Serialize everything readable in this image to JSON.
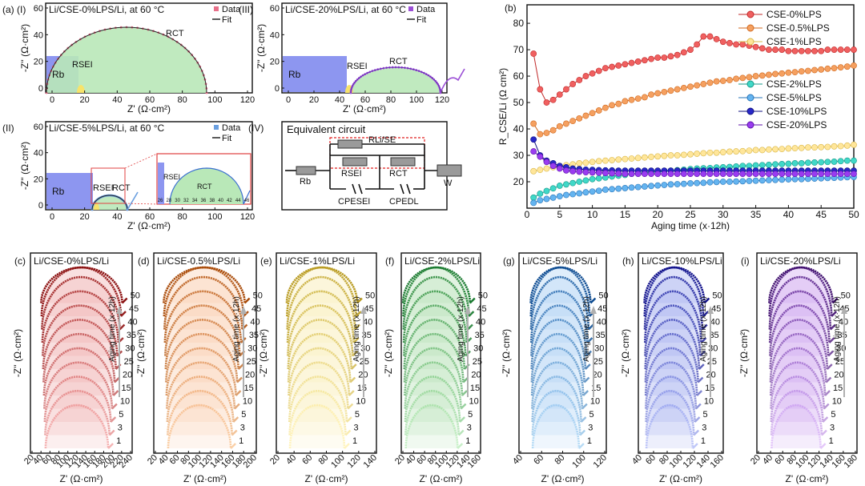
{
  "panels": {
    "a1": {
      "label": "(a) (I)",
      "title": "Li/CSE-0%LPS/Li, at 60 °C",
      "legend": [
        "Data",
        "Fit"
      ],
      "data_color": "#e8708a",
      "xlabel": "Z' (Ω·cm²)",
      "ylabel": "-Z'' (Ω·cm²)",
      "xticks": [
        "0",
        "20",
        "40",
        "60",
        "80",
        "100",
        "120"
      ],
      "yticks": [
        "0",
        "20",
        "40",
        "60"
      ],
      "annotations": [
        "Rb",
        "RSEI",
        "RCT"
      ]
    },
    "a2": {
      "label": "(II)",
      "title": "Li/CSE-5%LPS/Li, at 60 °C",
      "legend": [
        "Data",
        "Fit"
      ],
      "data_color": "#6a9fe0",
      "xlabel": "Z' (Ω·cm²)",
      "ylabel": "-Z'' (Ω·cm²)",
      "xticks": [
        "0",
        "20",
        "40",
        "60",
        "80",
        "100",
        "120"
      ],
      "yticks": [
        "0",
        "20",
        "40",
        "60"
      ],
      "annotations": [
        "Rb",
        "RSEI",
        "RCT"
      ],
      "inset_xticks": [
        "26",
        "28",
        "30",
        "32",
        "34",
        "36",
        "38",
        "40",
        "42",
        "44",
        "46"
      ],
      "inset_annotations": [
        "RSEI",
        "RCT"
      ]
    },
    "a3": {
      "label": "(III)",
      "title": "Li/CSE-20%LPS/Li, at 60 °C",
      "legend": [
        "Data",
        "Fit"
      ],
      "data_color": "#9b4fd6",
      "xlabel": "Z' (Ω·cm²)",
      "ylabel": "-Z'' (Ω·cm²)",
      "xticks": [
        "0",
        "20",
        "40",
        "60",
        "80",
        "100",
        "120"
      ],
      "yticks": [
        "0",
        "20",
        "40",
        "60"
      ],
      "annotations": [
        "Rb",
        "RSEI",
        "RCT"
      ]
    },
    "a4": {
      "label": "(IV)",
      "title": "Equivalent circuit",
      "components": [
        "Rb",
        "RLi/SE",
        "RSEI",
        "RCT",
        "CPESEI",
        "CPEDL",
        "W"
      ]
    }
  },
  "chart_data": [
    {
      "id": "b",
      "type": "line",
      "label": "(b)",
      "title": "",
      "xlabel": "Aging time (x·12h)",
      "ylabel": "R_CSE/Li (Ω cm²)",
      "xlim": [
        0,
        50
      ],
      "ylim": [
        10,
        87
      ],
      "xticks": [
        0,
        5,
        10,
        15,
        20,
        25,
        30,
        35,
        40,
        45,
        50
      ],
      "yticks": [
        20,
        30,
        40,
        50,
        60,
        70,
        80
      ],
      "x": [
        1,
        2,
        3,
        4,
        5,
        6,
        7,
        8,
        9,
        10,
        11,
        12,
        13,
        14,
        15,
        16,
        17,
        18,
        19,
        20,
        21,
        22,
        23,
        24,
        25,
        26,
        27,
        28,
        29,
        30,
        31,
        32,
        33,
        34,
        35,
        36,
        37,
        38,
        39,
        40,
        41,
        42,
        43,
        44,
        45,
        46,
        47,
        48,
        49,
        50
      ],
      "series": [
        {
          "name": "CSE-0%LPS",
          "color": "#f06060",
          "edge": "#c02828",
          "values": [
            68.5,
            55,
            50,
            51,
            53,
            55,
            57,
            58.5,
            60,
            61,
            62,
            63,
            63.5,
            64,
            64.5,
            65,
            65.5,
            66,
            66.5,
            67,
            67,
            67.5,
            68,
            69,
            70,
            72,
            75,
            75,
            74,
            73,
            72.5,
            72,
            72,
            71.5,
            71,
            70.5,
            70,
            70,
            70,
            69.5,
            69.5,
            69.5,
            69.5,
            69.5,
            69.5,
            70,
            70,
            70,
            70,
            70
          ]
        },
        {
          "name": "CSE-0.5%LPS",
          "color": "#f5a060",
          "edge": "#d06a20",
          "values": [
            42,
            38,
            38.5,
            39.5,
            41,
            42,
            43,
            44,
            45,
            46,
            47,
            48,
            49,
            49.5,
            50.5,
            51,
            51.5,
            52,
            53,
            53.5,
            54,
            54.5,
            55,
            55.5,
            56,
            56.5,
            57,
            57.5,
            58,
            58.2,
            58.5,
            59,
            59.3,
            59.6,
            60,
            60.2,
            60.5,
            60.8,
            61,
            61.3,
            61.5,
            61.8,
            62,
            62.3,
            62.5,
            62.8,
            63,
            63.3,
            63.6,
            64
          ]
        },
        {
          "name": "CSE-1%LPS",
          "color": "#ffe69a",
          "edge": "#d9b84a",
          "values": [
            24,
            24.5,
            25,
            25.5,
            26,
            26.3,
            26.6,
            27,
            27.2,
            27.5,
            27.8,
            28,
            28.2,
            28.4,
            28.6,
            28.8,
            29,
            29.2,
            29.4,
            29.6,
            29.8,
            30,
            30,
            30.2,
            30.4,
            30.6,
            30.8,
            31,
            31,
            31.2,
            31.4,
            31.5,
            31.6,
            31.8,
            32,
            32,
            32.2,
            32.3,
            32.4,
            32.6,
            32.7,
            32.8,
            33,
            33,
            33.1,
            33.2,
            33.4,
            33.5,
            33.7,
            34
          ]
        },
        {
          "name": "CSE-2%LPS",
          "color": "#40d8c8",
          "edge": "#169888",
          "values": [
            14,
            15.5,
            16.5,
            17.5,
            18.5,
            19,
            19.5,
            20,
            20.5,
            21,
            21.3,
            21.6,
            22,
            22.3,
            22.6,
            23,
            23.2,
            23.4,
            23.6,
            23.8,
            24,
            24.2,
            24.4,
            24.6,
            24.8,
            25,
            25.1,
            25.2,
            25.4,
            25.5,
            25.6,
            25.8,
            26,
            26,
            26.2,
            26.3,
            26.4,
            26.6,
            26.7,
            26.8,
            27,
            27,
            27.2,
            27.3,
            27.4,
            27.5,
            27.6,
            27.8,
            28,
            28
          ]
        },
        {
          "name": "CSE-5%LPS",
          "color": "#64b4f0",
          "edge": "#2874b8",
          "values": [
            12,
            13,
            13.5,
            14,
            14.5,
            15,
            15.3,
            15.6,
            16,
            16.3,
            16.6,
            17,
            17.2,
            17.4,
            17.6,
            17.8,
            18,
            18.2,
            18.4,
            18.6,
            18.8,
            19,
            19.1,
            19.2,
            19.4,
            19.5,
            19.6,
            19.8,
            19.9,
            20,
            20,
            20.1,
            20.2,
            20.3,
            20.4,
            20.5,
            20.6,
            20.7,
            20.8,
            20.9,
            21,
            21,
            21.1,
            21.2,
            21.3,
            21.4,
            21.5,
            21.6,
            21.7,
            21.8
          ]
        },
        {
          "name": "CSE-10%LPS",
          "color": "#2828c8",
          "edge": "#101080",
          "values": [
            36,
            30,
            28,
            27,
            26,
            25.5,
            25,
            24.8,
            24.6,
            24.5,
            24.4,
            24.3,
            24.3,
            24.2,
            24.2,
            24.2,
            24.2,
            24.2,
            24.2,
            24.2,
            24.2,
            24.2,
            24.2,
            24.2,
            24.2,
            24.2,
            24.2,
            24.2,
            24.2,
            24.2,
            24.2,
            24.2,
            24.2,
            24.2,
            24.2,
            24.2,
            24.2,
            24.2,
            24.2,
            24.2,
            24.2,
            24.2,
            24.2,
            24.2,
            24.2,
            24.2,
            24.2,
            24.2,
            24.2,
            24.2
          ]
        },
        {
          "name": "CSE-20%LPS",
          "color": "#9a3cf0",
          "edge": "#5c10a8",
          "values": [
            31.5,
            29.5,
            27.5,
            26,
            25,
            24.3,
            24,
            23.8,
            23.6,
            23.5,
            23.4,
            23.3,
            23.2,
            23.1,
            23,
            23,
            23,
            23,
            23,
            23,
            23,
            23,
            23,
            23,
            23,
            23,
            23,
            23,
            23,
            23,
            23,
            23,
            23,
            23,
            23,
            23,
            23,
            23,
            23,
            23,
            23,
            23,
            23,
            23,
            23,
            23,
            23,
            23,
            23,
            23
          ]
        }
      ]
    },
    {
      "id": "c",
      "type": "line",
      "label": "(c)",
      "title": "Li/CSE-0%LPS/Li",
      "xlabel": "Z' (Ω·cm²)",
      "ylabel": "-Z'' (Ω·cm²)",
      "xticks": [
        "20",
        "40",
        "60",
        "80",
        "100",
        "120",
        "140",
        "160",
        "180",
        "200",
        "220",
        "240"
      ],
      "ages": [
        "1",
        "3",
        "5",
        "10",
        "15",
        "20",
        "25",
        "30",
        "35",
        "40",
        "45",
        "50"
      ],
      "dark": "#8a1010",
      "light": "#f5b5b5",
      "fill": "#e06060",
      "annotation": "Aging time (x·12h)"
    },
    {
      "id": "d",
      "type": "line",
      "label": "(d)",
      "title": "Li/CSE-0.5%LPS/Li",
      "xlabel": "Z' (Ω·cm²)",
      "ylabel": "-Z'' (Ω·cm²)",
      "xticks": [
        "20",
        "40",
        "60",
        "80",
        "100",
        "120",
        "140",
        "160",
        "180",
        "200"
      ],
      "ages": [
        "1",
        "3",
        "5",
        "10",
        "15",
        "20",
        "25",
        "30",
        "35",
        "40",
        "45",
        "50"
      ],
      "dark": "#a84a08",
      "light": "#fad0a8",
      "fill": "#f5a060",
      "annotation": "Aging time (x·12h)"
    },
    {
      "id": "e",
      "type": "line",
      "label": "(e)",
      "title": "Li/CSE-1%LPS/Li",
      "xlabel": "Z' (Ω·cm²)",
      "ylabel": "-Z'' (Ω·cm²)",
      "xticks": [
        "20",
        "40",
        "60",
        "80",
        "100",
        "120",
        "140"
      ],
      "ages": [
        "1",
        "3",
        "5",
        "10",
        "15",
        "20",
        "25",
        "30",
        "35",
        "40",
        "45",
        "50"
      ],
      "dark": "#b89a20",
      "light": "#fff4c0",
      "fill": "#fae680",
      "annotation": "Aging time (x·12h)"
    },
    {
      "id": "f",
      "type": "line",
      "label": "(f)",
      "title": "Li/CSE-2%LPS/Li",
      "xlabel": "Z' (Ω·cm²)",
      "ylabel": "-Z'' (Ω·cm²)",
      "xticks": [
        "20",
        "40",
        "60",
        "80",
        "100",
        "120",
        "140",
        "160"
      ],
      "ages": [
        "1",
        "3",
        "5",
        "10",
        "15",
        "20",
        "25",
        "30",
        "35",
        "40",
        "45",
        "50"
      ],
      "dark": "#1a7a30",
      "light": "#c8f0c8",
      "fill": "#70c870",
      "annotation": "Aging time (x·12h)"
    },
    {
      "id": "g",
      "type": "line",
      "label": "(g)",
      "title": "Li/CSE-5%LPS/Li",
      "xlabel": "Z' (Ω·cm²)",
      "ylabel": "-Z'' (Ω·cm²)",
      "xticks": [
        "40",
        "60",
        "80",
        "100",
        "120"
      ],
      "ages": [
        "1",
        "3",
        "5",
        "10",
        "15",
        "20",
        "25",
        "30",
        "35",
        "40",
        "45",
        "50"
      ],
      "dark": "#0c4a90",
      "light": "#b8dcf5",
      "fill": "#64a8e8",
      "annotation": "Aging time (x·12h)"
    },
    {
      "id": "h",
      "type": "line",
      "label": "(h)",
      "title": "Li/CSE-10%LPS/Li",
      "xlabel": "Z' (Ω·cm²)",
      "ylabel": "-Z'' (Ω·cm²)",
      "xticks": [
        "40",
        "60",
        "80",
        "100",
        "120",
        "140",
        "160"
      ],
      "ages": [
        "1",
        "3",
        "5",
        "10",
        "15",
        "20",
        "25",
        "30",
        "35",
        "40",
        "45",
        "50"
      ],
      "dark": "#10108a",
      "light": "#c0c8f8",
      "fill": "#5060e0",
      "annotation": "Aging time (x·12h)"
    },
    {
      "id": "i",
      "type": "line",
      "label": "(i)",
      "title": "Li/CSE-20%LPS/Li",
      "xlabel": "Z' (Ω·cm²)",
      "ylabel": "-Z'' (Ω·cm²)",
      "xticks": [
        "20",
        "40",
        "60",
        "80",
        "100",
        "120",
        "140",
        "160",
        "180"
      ],
      "ages": [
        "1",
        "3",
        "5",
        "10",
        "15",
        "20",
        "25",
        "30",
        "35",
        "40",
        "45",
        "50"
      ],
      "dark": "#40106e",
      "light": "#e4c8fa",
      "fill": "#a050e0",
      "annotation": "Aging time (x·12h)"
    }
  ]
}
